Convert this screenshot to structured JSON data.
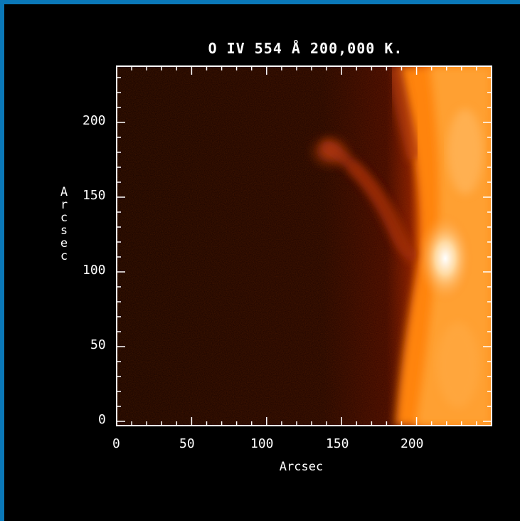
{
  "title": "O IV 554 Å   200,000 K.",
  "x_axis": {
    "label": "Arcsec",
    "ticks": [
      "0",
      "50",
      "100",
      "150",
      "200"
    ]
  },
  "y_axis": {
    "label": "Arcsec",
    "ticks": [
      "0",
      "50",
      "100",
      "150",
      "200"
    ]
  },
  "colors": {
    "frame": "#0a78b8",
    "background": "#000000",
    "colormap": [
      "#000000",
      "#3a0500",
      "#8a1e00",
      "#d44a00",
      "#ff8a10",
      "#ffd080",
      "#ffffff"
    ]
  }
}
